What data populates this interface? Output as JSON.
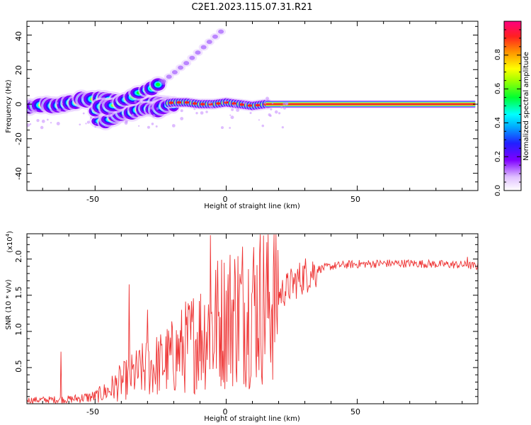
{
  "title": "C2E1.2023.115.07.31.R21",
  "colors": {
    "snr_line": "#ee3333",
    "track": "#e83030",
    "background": "#ffffff",
    "colormap": [
      "#ffffff",
      "#e8d0ff",
      "#c070ff",
      "#8000ff",
      "#2020ff",
      "#0090ff",
      "#00ffff",
      "#00ff30",
      "#a0ff00",
      "#ffff00",
      "#ff9000",
      "#ff2020",
      "#ff0080"
    ]
  },
  "chart_data": [
    {
      "id": "spectrogram",
      "type": "heatmap",
      "xlabel": "Height of straight line (km)",
      "ylabel": "Frequency (Hz)",
      "xlim": [
        -76,
        96
      ],
      "ylim": [
        -50,
        48
      ],
      "xticks": [
        -50,
        0,
        50
      ],
      "yticks": [
        -40,
        -20,
        0,
        20,
        40
      ],
      "grid": false,
      "main_track": [
        [
          -75,
          -2
        ],
        [
          -70,
          -1
        ],
        [
          -65,
          0
        ],
        [
          -60,
          1
        ],
        [
          -55,
          2
        ],
        [
          -50,
          3
        ],
        [
          -45,
          3
        ],
        [
          -40,
          2
        ],
        [
          -35,
          1
        ],
        [
          -30,
          0
        ],
        [
          -25,
          0
        ],
        [
          -20,
          1
        ],
        [
          -15,
          1
        ],
        [
          -10,
          0
        ],
        [
          -5,
          0
        ],
        [
          0,
          1
        ],
        [
          5,
          0
        ],
        [
          10,
          -1
        ],
        [
          15,
          0
        ],
        [
          20,
          0
        ],
        [
          50,
          0
        ],
        [
          95,
          0
        ]
      ],
      "lower_branch": [
        [
          -48,
          -10
        ],
        [
          -45,
          -9
        ],
        [
          -40,
          -6
        ],
        [
          -35,
          -4
        ],
        [
          -30,
          -3
        ],
        [
          -25,
          -2
        ],
        [
          -20,
          0
        ]
      ],
      "upper_branch": [
        [
          -50,
          -3
        ],
        [
          -45,
          -1
        ],
        [
          -40,
          2
        ],
        [
          -35,
          5
        ],
        [
          -30,
          8
        ],
        [
          -25,
          12
        ],
        [
          -20,
          18
        ],
        [
          -15,
          24
        ],
        [
          -10,
          31
        ],
        [
          -5,
          38
        ],
        [
          -2,
          42
        ]
      ],
      "colorbar": {
        "label": "Normalized spectral amplitude",
        "range": [
          0,
          1
        ],
        "ticks": [
          "0.0",
          "0.2",
          "0.4",
          "0.6",
          "0.8"
        ]
      }
    },
    {
      "id": "snr",
      "type": "line",
      "xlabel": "Height of straight line (km)",
      "ylabel": "SNR (10 * v/v)",
      "multiplier": "(x10",
      "multiplier_exp": "4",
      "xlim": [
        -76,
        96
      ],
      "ylim": [
        0,
        23500
      ],
      "xticks": [
        -50,
        0,
        50
      ],
      "yticks": [
        "0.5",
        "1.0",
        "1.5",
        "2.0"
      ],
      "grid": false,
      "envelope": [
        [
          -76,
          500
        ],
        [
          -60,
          600
        ],
        [
          -50,
          1000
        ],
        [
          -45,
          1800
        ],
        [
          -40,
          3000
        ],
        [
          -35,
          4000
        ],
        [
          -30,
          5000
        ],
        [
          -25,
          5500
        ],
        [
          -20,
          6500
        ],
        [
          -15,
          8000
        ],
        [
          -10,
          9500
        ],
        [
          -5,
          11000
        ],
        [
          0,
          12000
        ],
        [
          5,
          13000
        ],
        [
          10,
          13500
        ],
        [
          15,
          14000
        ],
        [
          20,
          15000
        ],
        [
          25,
          16500
        ],
        [
          30,
          17800
        ],
        [
          35,
          18600
        ],
        [
          40,
          19000
        ],
        [
          45,
          19200
        ],
        [
          50,
          19300
        ],
        [
          60,
          19400
        ],
        [
          70,
          19400
        ],
        [
          80,
          19300
        ],
        [
          90,
          19200
        ],
        [
          96,
          19000
        ]
      ],
      "spikes": [
        [
          -63,
          7200
        ],
        [
          -37,
          16500
        ],
        [
          -30,
          13000
        ],
        [
          -6,
          23300
        ],
        [
          -5,
          4800
        ],
        [
          10,
          15500
        ],
        [
          12,
          6500
        ],
        [
          92,
          20300
        ]
      ]
    }
  ]
}
